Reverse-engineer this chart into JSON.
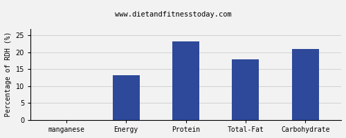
{
  "subtitle": "www.dietandfitnesstoday.com",
  "categories": [
    "manganese",
    "Energy",
    "Protein",
    "Total-Fat",
    "Carbohydrate"
  ],
  "values": [
    0,
    13.3,
    23.3,
    18.0,
    21.0
  ],
  "bar_color": "#2e4999",
  "ylabel": "Percentage of RDH (%)",
  "ylim": [
    0,
    27
  ],
  "yticks": [
    0,
    5,
    10,
    15,
    20,
    25
  ],
  "background_color": "#f2f2f2",
  "title_fontsize": 9,
  "subtitle_fontsize": 7.5,
  "ylabel_fontsize": 7,
  "tick_fontsize": 7,
  "bar_width": 0.45
}
